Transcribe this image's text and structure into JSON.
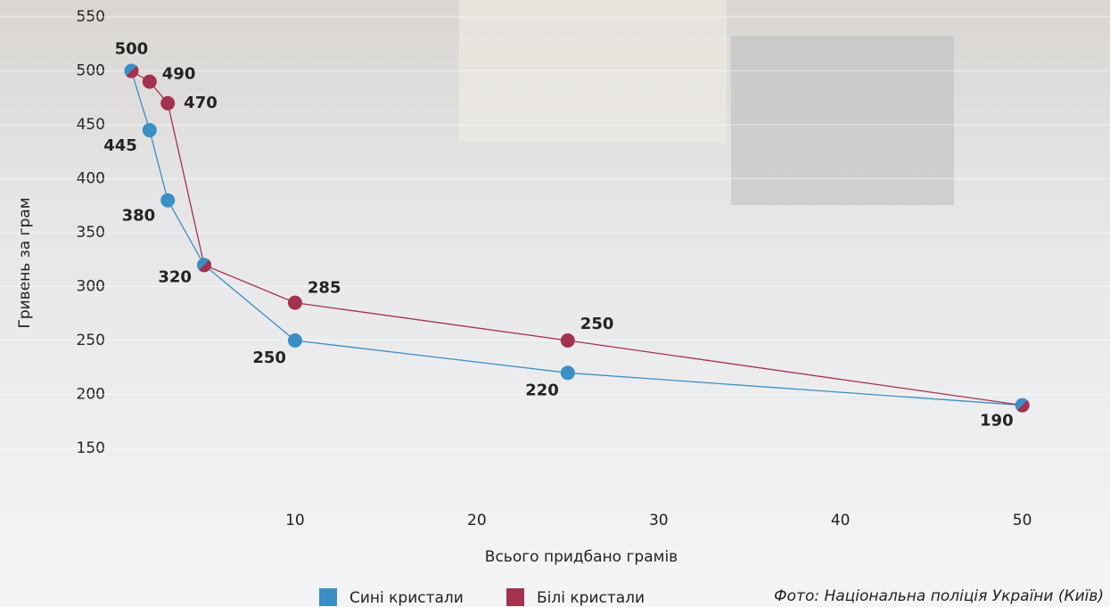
{
  "chart_data": {
    "type": "line",
    "x_label": "Всього придбано грамів",
    "y_label": "Гривень за грам",
    "x": [
      1,
      2,
      3,
      5,
      10,
      25,
      50
    ],
    "series": [
      {
        "name": "Сині кристали",
        "color": "#3a8fc4",
        "values": [
          500,
          445,
          380,
          320,
          250,
          220,
          190
        ]
      },
      {
        "name": "Білі кристали",
        "color": "#a3324f",
        "values": [
          500,
          490,
          470,
          320,
          285,
          250,
          190
        ]
      }
    ],
    "xlim": [
      0,
      51
    ],
    "xticks": [
      10,
      20,
      30,
      40,
      50
    ],
    "ylim": [
      100,
      550
    ],
    "yticks": [
      150,
      200,
      250,
      300,
      350,
      400,
      450,
      500,
      550
    ],
    "grid": true,
    "credit": "Фото: Національна поліція України (Київ)"
  }
}
